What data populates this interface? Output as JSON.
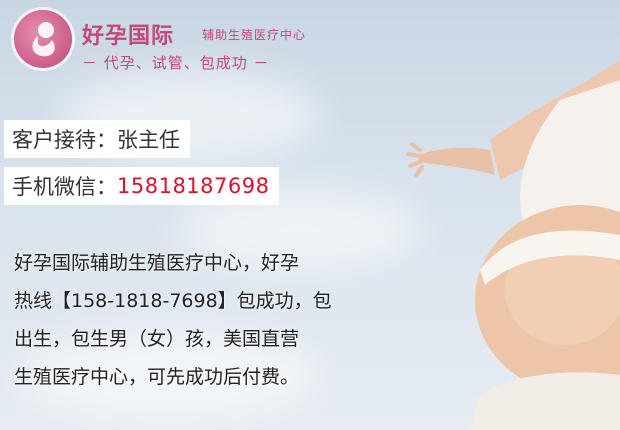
{
  "logo": {
    "icon": "fetus-icon",
    "name": "好孕国际",
    "subtitle": "辅助生殖医疗中心",
    "tagline": "－ 代孕、试管、包成功 －",
    "color": "#c2487a"
  },
  "contact": {
    "reception_label": "客户接待：",
    "reception_name": "张主任",
    "phone_label": "手机微信：",
    "phone_number": "15818187698",
    "phone_color": "#e0102d"
  },
  "description": {
    "lines": [
      "好孕国际辅助生殖医疗中心，好孕",
      "热线【158-1818-7698】包成功，包",
      "出生，包生男（女）孩，美国直营",
      "生殖医疗中心，可先成功后付费。"
    ]
  }
}
